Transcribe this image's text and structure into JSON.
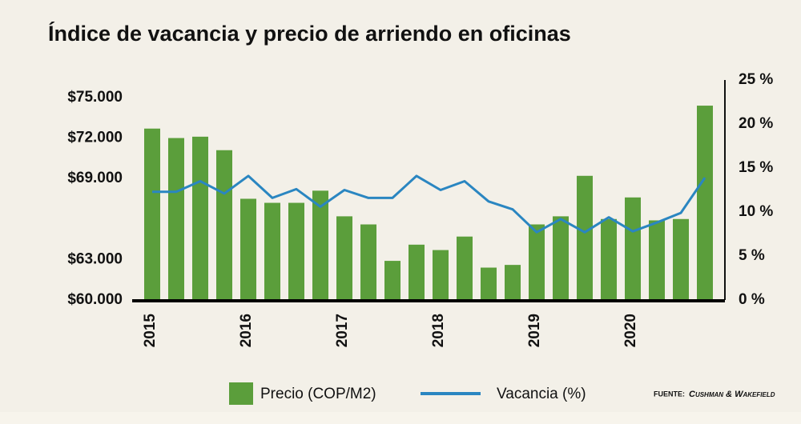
{
  "chart_data": {
    "type": "bar",
    "title": "Índice de vacancia y precio de arriendo en oficinas",
    "categories": [
      "2015",
      null,
      null,
      null,
      "2016",
      null,
      null,
      null,
      "2017",
      null,
      null,
      null,
      "2018",
      null,
      null,
      null,
      "2019",
      null,
      null,
      null,
      "2020",
      null,
      null,
      null
    ],
    "series": [
      {
        "name": "Precio (COP/M2)",
        "type": "bar",
        "color": "#5b9e3b",
        "values": [
          72700,
          72000,
          72100,
          71100,
          67500,
          67200,
          67200,
          68100,
          66200,
          65600,
          62900,
          64100,
          63700,
          64700,
          62400,
          62600,
          65600,
          66200,
          69200,
          66000,
          67600,
          65900,
          66000,
          74400
        ]
      },
      {
        "name": "Vacancia (%)",
        "type": "line",
        "axis": "y2",
        "color": "#2a86c1",
        "values": [
          12.3,
          12.3,
          13.5,
          12.1,
          14.1,
          11.6,
          12.6,
          10.6,
          12.5,
          11.6,
          11.6,
          14.1,
          12.5,
          13.5,
          11.2,
          10.3,
          7.7,
          9.2,
          7.7,
          9.4,
          7.8,
          8.8,
          9.9,
          13.9
        ]
      }
    ],
    "ylim": [
      60000,
      76300
    ],
    "yticks": [
      {
        "value": 60000,
        "label": "$60.000"
      },
      {
        "value": 63000,
        "label": "$63.000"
      },
      {
        "value": 69000,
        "label": "$69.000"
      },
      {
        "value": 72000,
        "label": "$72.000"
      },
      {
        "value": 75000,
        "label": "$75.000"
      }
    ],
    "y2lim": [
      0,
      25
    ],
    "y2ticks": [
      {
        "value": 0,
        "label": "0 %"
      },
      {
        "value": 5,
        "label": "5 %"
      },
      {
        "value": 10,
        "label": "10 %"
      },
      {
        "value": 15,
        "label": "15 %"
      },
      {
        "value": 20,
        "label": "20 %"
      },
      {
        "value": 25,
        "label": "25 %"
      }
    ],
    "source_label": "FUENTE:",
    "source": "Cushman & Wakefield"
  }
}
